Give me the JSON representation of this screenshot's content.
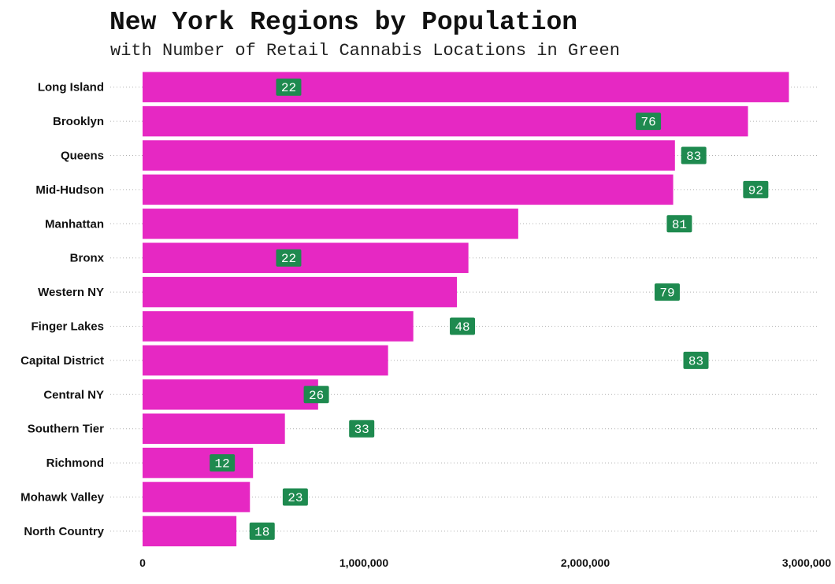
{
  "chart_data": {
    "type": "bar",
    "orientation": "horizontal",
    "title": "New York Regions by Population",
    "subtitle": "with Number of Retail Cannabis Locations in Green",
    "categories": [
      "Long Island",
      "Brooklyn",
      "Queens",
      "Mid-Hudson",
      "Manhattan",
      "Bronx",
      "Western NY",
      "Finger Lakes",
      "Capital District",
      "Central NY",
      "Southern Tier",
      "Richmond",
      "Mohawk Valley",
      "North Country"
    ],
    "values": [
      2920000,
      2735000,
      2405000,
      2397000,
      1697000,
      1472000,
      1420000,
      1223000,
      1109000,
      793000,
      643000,
      499000,
      485000,
      424000
    ],
    "labels": [
      22,
      76,
      83,
      92,
      81,
      22,
      79,
      48,
      83,
      26,
      33,
      12,
      23,
      18
    ],
    "label_positions": [
      660000,
      2285000,
      2490000,
      2770000,
      2425000,
      660000,
      2370000,
      1445000,
      2500000,
      785000,
      990000,
      360000,
      690000,
      540000
    ],
    "xlim": [
      0,
      3000000
    ],
    "xticks": [
      0,
      1000000,
      2000000,
      3000000
    ],
    "xtick_labels": [
      "0",
      "1,000,000",
      "2,000,000",
      "3,000,000"
    ],
    "bar_color": "#e628c3",
    "label_color": "#1e8a4f",
    "grid": "horizontal dotted",
    "legend": "none"
  }
}
